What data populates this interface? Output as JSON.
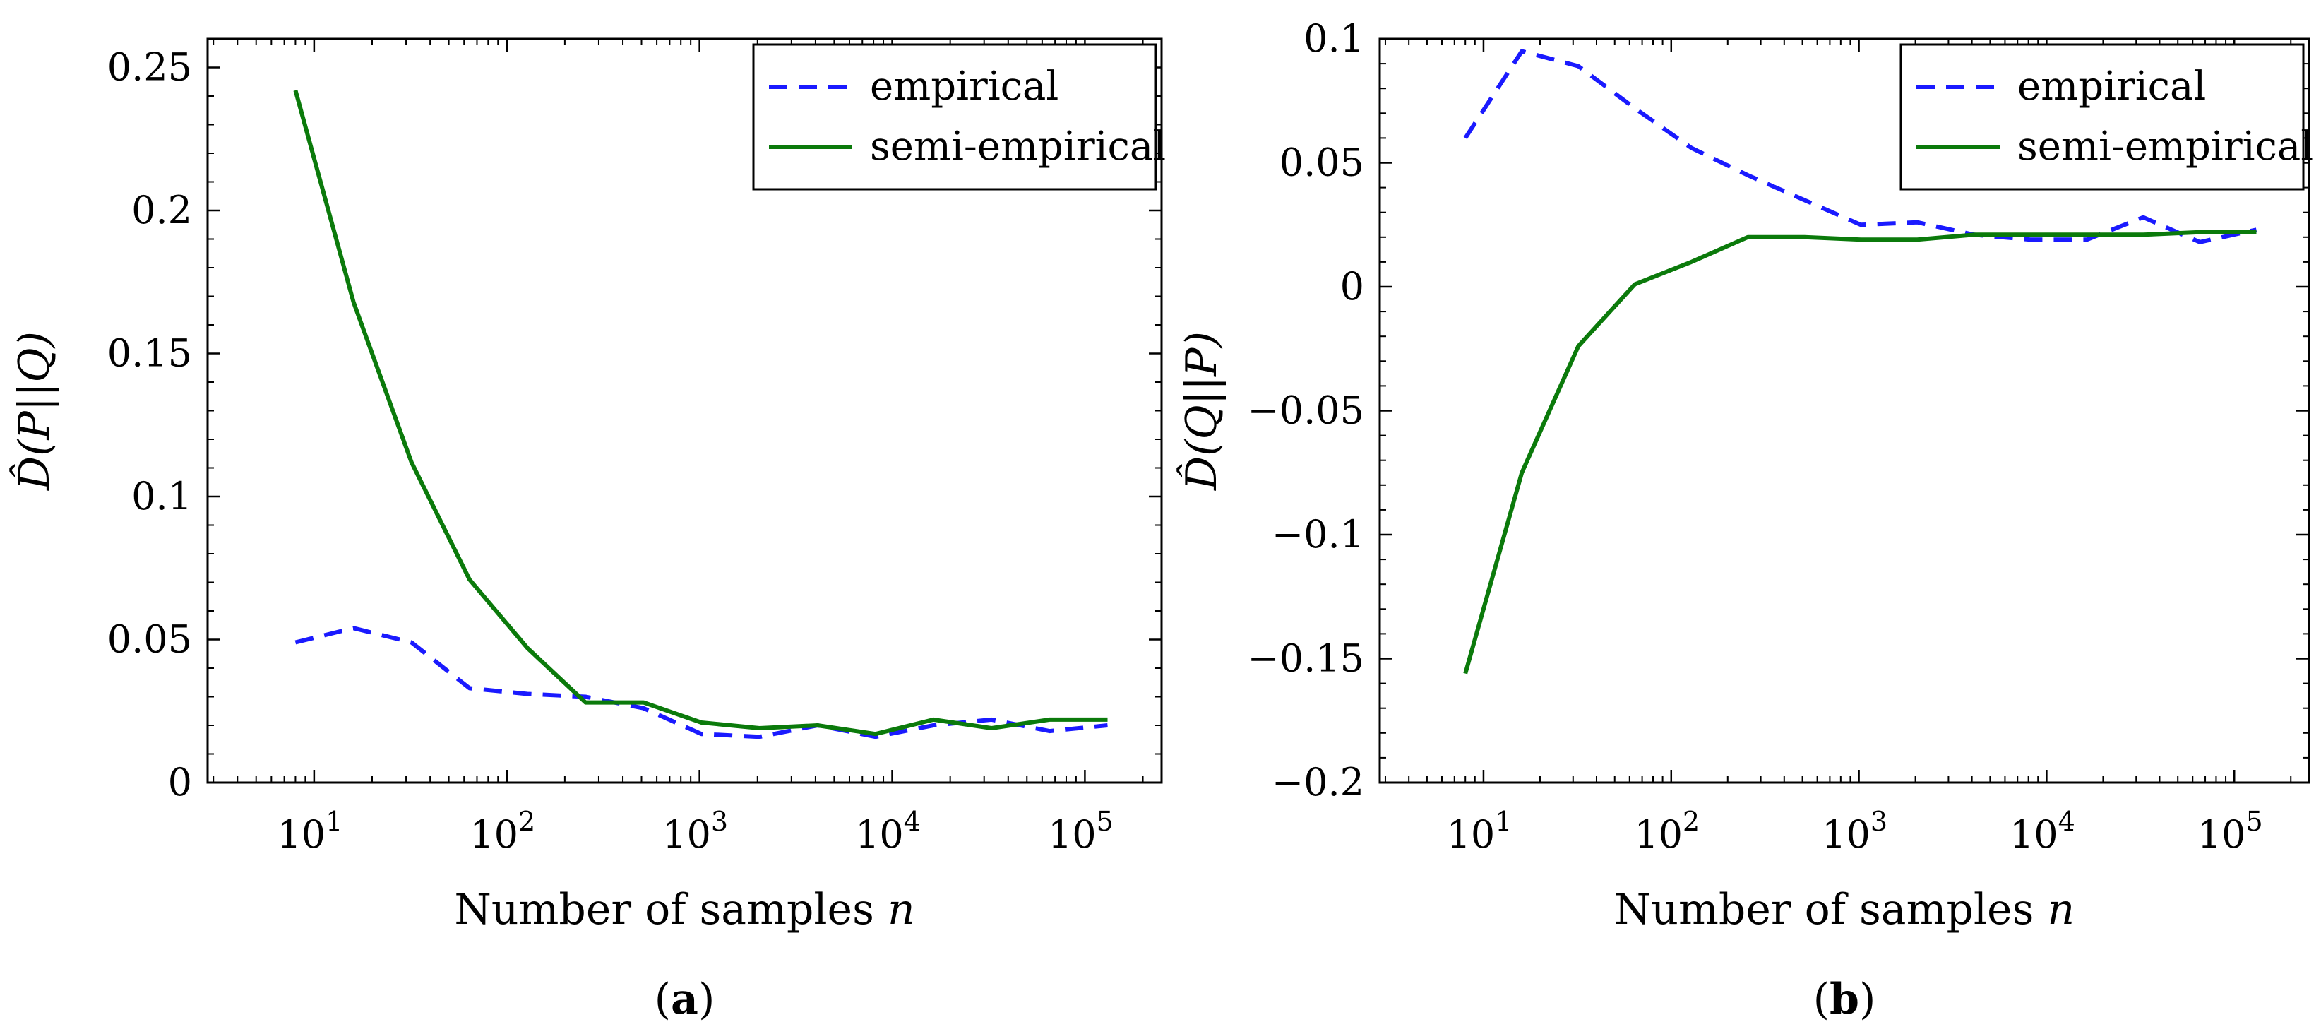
{
  "colors": {
    "empirical": "#1a1aff",
    "semi_empirical": "#0b7a0b",
    "axis": "#000000"
  },
  "chart_data": [
    {
      "type": "line",
      "panel_label_open": "(",
      "panel_label": "a",
      "panel_label_close": ")",
      "xlabel": "Number of samples ",
      "xlabel_var": "n",
      "ylabel": "D̂(P||Q)",
      "xscale": "log",
      "xlim": [
        2.8,
        250000
      ],
      "ylim": [
        0,
        0.26
      ],
      "x_ticks": [
        {
          "value": 10,
          "base": "10",
          "exp": "1"
        },
        {
          "value": 100,
          "base": "10",
          "exp": "2"
        },
        {
          "value": 1000,
          "base": "10",
          "exp": "3"
        },
        {
          "value": 10000,
          "base": "10",
          "exp": "4"
        },
        {
          "value": 100000,
          "base": "10",
          "exp": "5"
        }
      ],
      "y_ticks": [
        {
          "value": 0,
          "label": "0"
        },
        {
          "value": 0.05,
          "label": "0.05"
        },
        {
          "value": 0.1,
          "label": "0.1"
        },
        {
          "value": 0.15,
          "label": "0.15"
        },
        {
          "value": 0.2,
          "label": "0.2"
        },
        {
          "value": 0.25,
          "label": "0.25"
        }
      ],
      "legend_position": "top-right",
      "series": [
        {
          "name": "empirical",
          "style": "dashed",
          "x": [
            8,
            16,
            32,
            64,
            128,
            256,
            512,
            1024,
            2048,
            4096,
            8192,
            16384,
            32768,
            65536,
            131072
          ],
          "y": [
            0.049,
            0.054,
            0.049,
            0.033,
            0.031,
            0.03,
            0.026,
            0.017,
            0.016,
            0.02,
            0.016,
            0.02,
            0.022,
            0.018,
            0.02
          ]
        },
        {
          "name": "semi-empirical",
          "style": "solid",
          "x": [
            8,
            16,
            32,
            64,
            128,
            256,
            512,
            1024,
            2048,
            4096,
            8192,
            16384,
            32768,
            65536,
            131072
          ],
          "y": [
            0.242,
            0.168,
            0.112,
            0.071,
            0.047,
            0.028,
            0.028,
            0.021,
            0.019,
            0.02,
            0.017,
            0.022,
            0.019,
            0.022,
            0.022
          ]
        }
      ]
    },
    {
      "type": "line",
      "panel_label_open": "(",
      "panel_label": "b",
      "panel_label_close": ")",
      "xlabel": "Number of samples ",
      "xlabel_var": "n",
      "ylabel": "D̂(Q||P)",
      "xscale": "log",
      "xlim": [
        2.8,
        250000
      ],
      "ylim": [
        -0.2,
        0.1
      ],
      "x_ticks": [
        {
          "value": 10,
          "base": "10",
          "exp": "1"
        },
        {
          "value": 100,
          "base": "10",
          "exp": "2"
        },
        {
          "value": 1000,
          "base": "10",
          "exp": "3"
        },
        {
          "value": 10000,
          "base": "10",
          "exp": "4"
        },
        {
          "value": 100000,
          "base": "10",
          "exp": "5"
        }
      ],
      "y_ticks": [
        {
          "value": -0.2,
          "label": "−0.2"
        },
        {
          "value": -0.15,
          "label": "−0.15"
        },
        {
          "value": -0.1,
          "label": "−0.1"
        },
        {
          "value": -0.05,
          "label": "−0.05"
        },
        {
          "value": 0,
          "label": "0"
        },
        {
          "value": 0.05,
          "label": "0.05"
        },
        {
          "value": 0.1,
          "label": "0.1"
        }
      ],
      "legend_position": "top-right",
      "series": [
        {
          "name": "empirical",
          "style": "dashed",
          "x": [
            8,
            16,
            32,
            64,
            128,
            256,
            512,
            1024,
            2048,
            4096,
            8192,
            16384,
            32768,
            65536,
            131072
          ],
          "y": [
            0.06,
            0.095,
            0.089,
            0.072,
            0.056,
            0.045,
            0.035,
            0.025,
            0.026,
            0.021,
            0.019,
            0.019,
            0.028,
            0.018,
            0.023
          ]
        },
        {
          "name": "semi-empirical",
          "style": "solid",
          "x": [
            8,
            16,
            32,
            64,
            128,
            256,
            512,
            1024,
            2048,
            4096,
            8192,
            16384,
            32768,
            65536,
            131072
          ],
          "y": [
            -0.156,
            -0.075,
            -0.024,
            0.001,
            0.01,
            0.02,
            0.02,
            0.019,
            0.019,
            0.021,
            0.021,
            0.021,
            0.021,
            0.022,
            0.022
          ]
        }
      ]
    }
  ]
}
